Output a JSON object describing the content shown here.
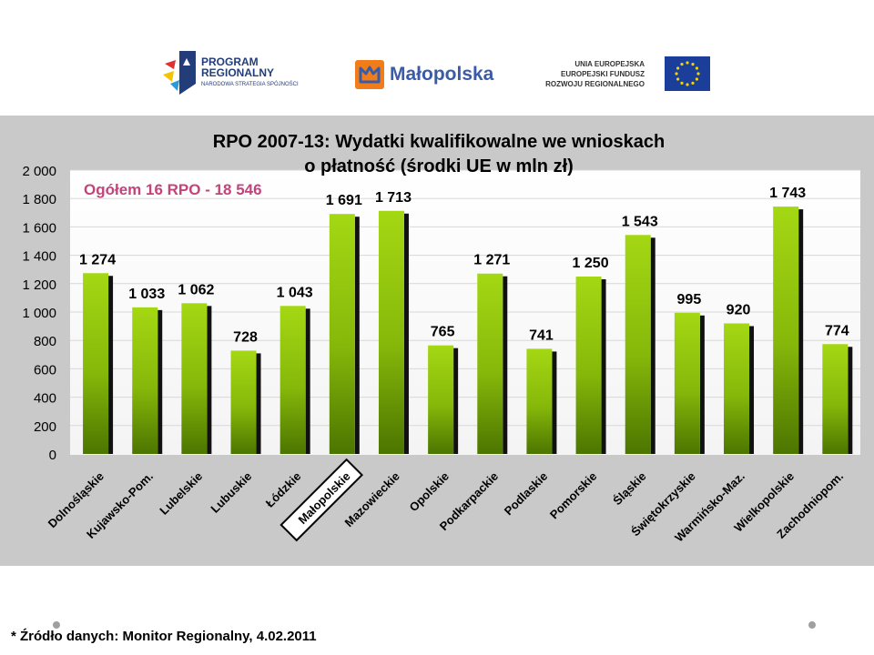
{
  "logos": {
    "program_line1": "PROGRAM",
    "program_line2": "REGIONALNY",
    "program_line3": "NARODOWA STRATEGIA SPÓJNOŚCI",
    "malopolska": "Małopolska",
    "eu_line1": "UNIA EUROPEJSKA",
    "eu_line2": "EUROPEJSKI FUNDUSZ",
    "eu_line3": "ROZWOJU REGIONALNEGO"
  },
  "chart_data": {
    "type": "bar",
    "title_line1": "RPO 2007-13: Wydatki kwalifikowalne we wnioskach",
    "title_line2": "o płatność (środki UE w mln zł)",
    "annotation": "Ogółem 16 RPO - 18 546",
    "categories": [
      "Dolnośląskie",
      "Kujawsko-Pom.",
      "Lubelskie",
      "Lubuskie",
      "Łódzkie",
      "Małopolskie",
      "Mazowieckie",
      "Opolskie",
      "Podkarpackie",
      "Podlaskie",
      "Pomorskie",
      "Śląskie",
      "Świętokrzyskie",
      "Warmińsko-Maz.",
      "Wielkopolskie",
      "Zachodniopom."
    ],
    "values": [
      1274,
      1033,
      1062,
      728,
      1043,
      1691,
      1713,
      765,
      1271,
      741,
      1250,
      1543,
      995,
      920,
      1743,
      774
    ],
    "value_labels": [
      "1 274",
      "1 033",
      "1 062",
      "728",
      "1 043",
      "1 691",
      "1 713",
      "765",
      "1 271",
      "741",
      "1 250",
      "1 543",
      "995",
      "920",
      "1 743",
      "774"
    ],
    "highlighted_category": "Małopolskie",
    "ylim": [
      0,
      2000
    ],
    "yticks": [
      0,
      200,
      400,
      600,
      800,
      1000,
      1200,
      1400,
      1600,
      1800,
      2000
    ],
    "ytick_labels": [
      "0",
      "200",
      "400",
      "600",
      "800",
      "1 000",
      "1 200",
      "1 400",
      "1 600",
      "1 800",
      "2 000"
    ],
    "grid": true,
    "colors": {
      "bar_top": "#9bd10a",
      "bar_bottom": "#4f7a00",
      "shadow": "#111111",
      "panel": "#c9c9c9",
      "title": "#000000",
      "annotation": "#c2447a"
    }
  },
  "footer": {
    "source": "* Źródło danych:  Monitor Regionalny, 4.02.2011"
  }
}
